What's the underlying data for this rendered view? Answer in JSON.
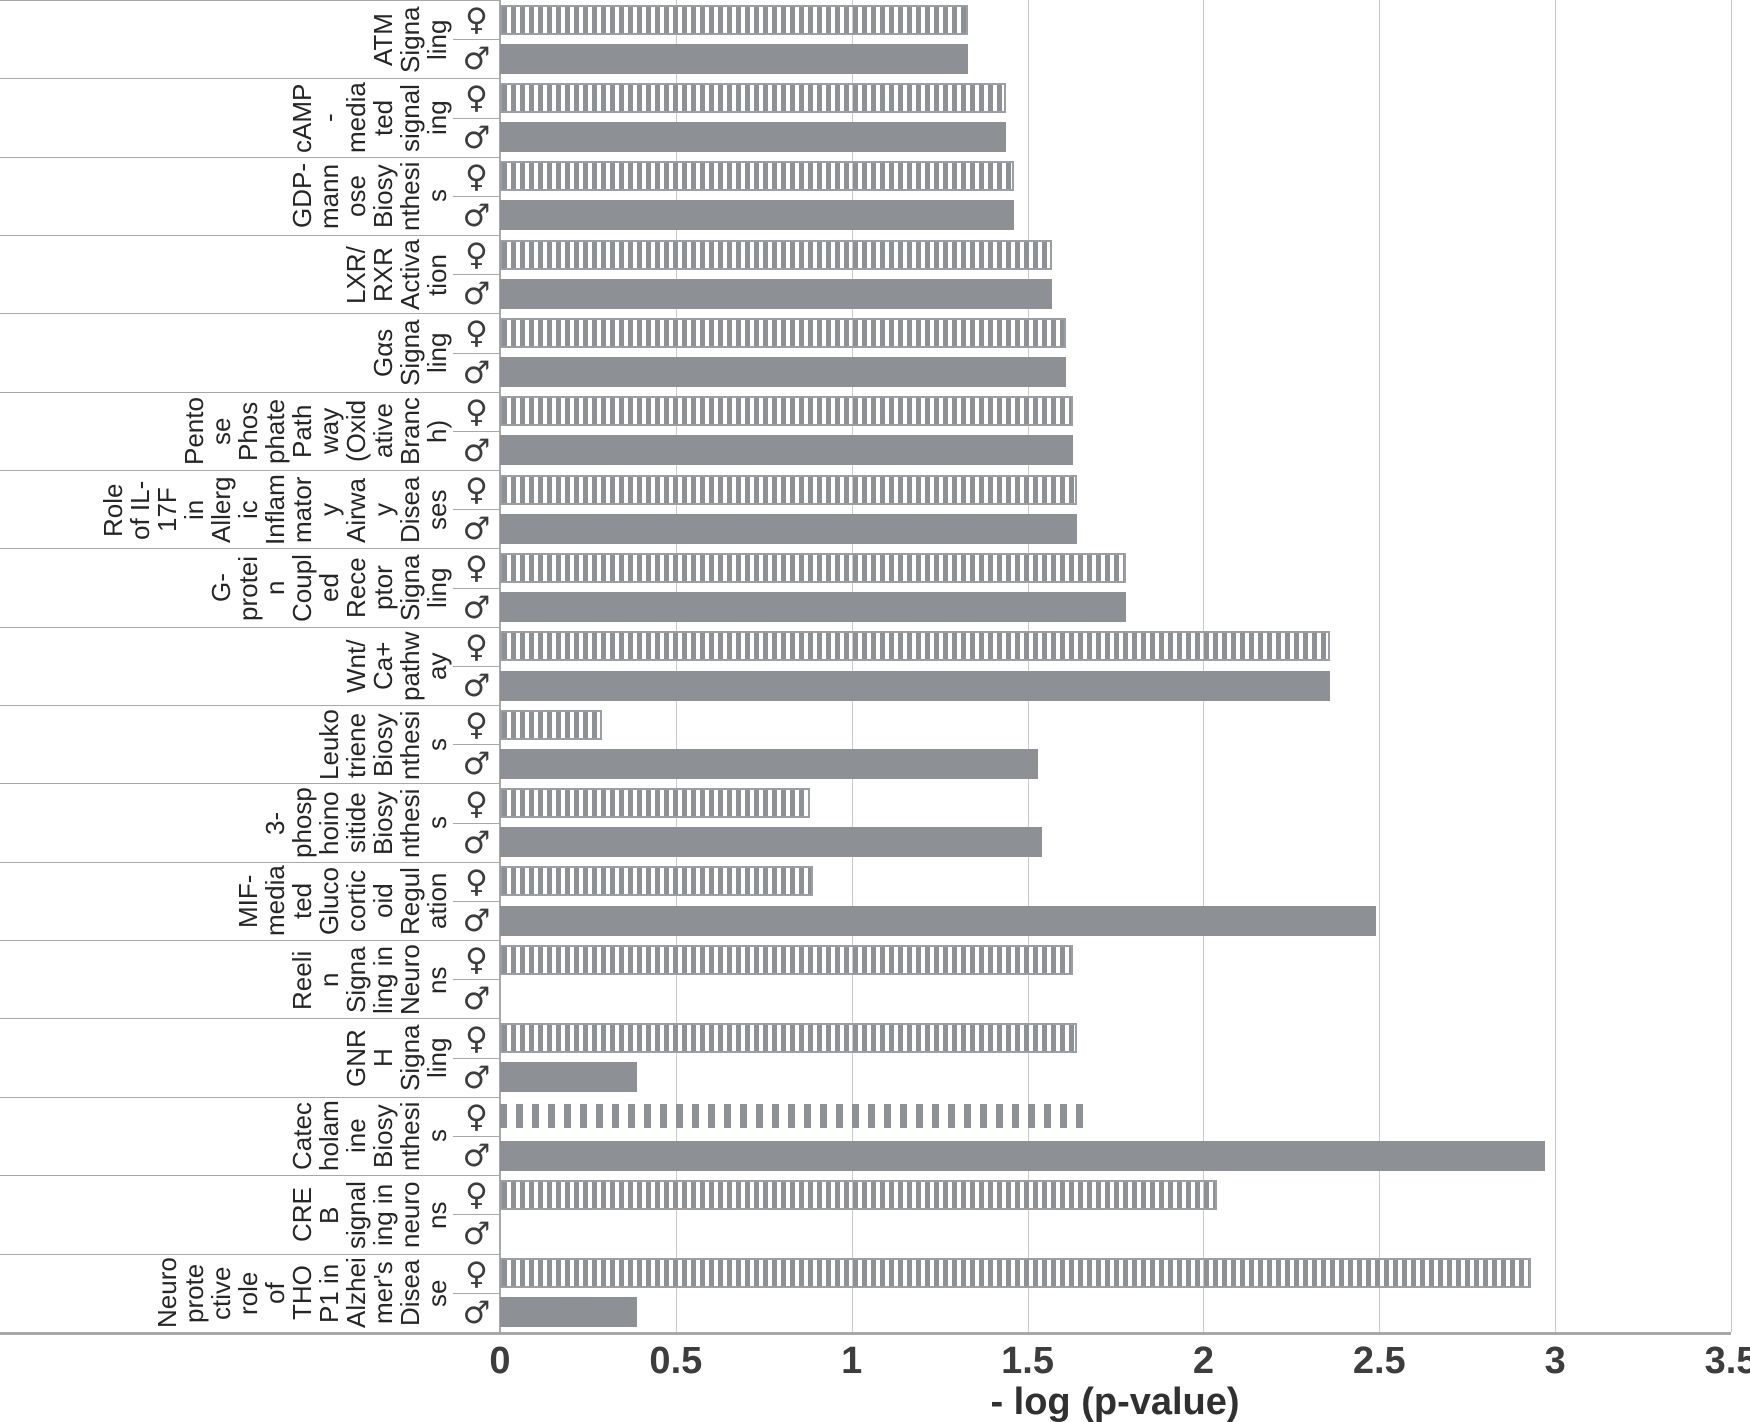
{
  "chart_data": {
    "type": "bar",
    "orientation": "horizontal",
    "title": "",
    "xlabel": "- log (p-value)",
    "ylabel": "",
    "xlim": [
      0,
      3.5
    ],
    "xticks": [
      "0",
      "0.5",
      "1",
      "1.5",
      "2",
      "2.5",
      "3",
      "3.5"
    ],
    "grid": true,
    "legend_position": "none",
    "symbols": {
      "female": "♀",
      "male": "♂"
    },
    "series_note": "Each category has two bars: female (hatched, top) and male (solid, bottom)",
    "categories": [
      {
        "name": "ATM Signaling",
        "label": "ATM\nSigna\nling",
        "female": 1.33,
        "male": 1.33
      },
      {
        "name": "cAMP-mediated signaling",
        "label": "cAMP\n-\nmedia\nted\nsignal\ning",
        "female": 1.44,
        "male": 1.44
      },
      {
        "name": "GDP-mannose Biosynthesis",
        "label": "GDP-\nmann\nose\nBiosy\nnthesi\ns",
        "female": 1.46,
        "male": 1.46
      },
      {
        "name": "LXR/RXR Activation",
        "label": "LXR/\nRXR\nActiva\ntion",
        "female": 1.57,
        "male": 1.57
      },
      {
        "name": "Gαs Signaling",
        "label": "Gαs\nSigna\nling",
        "female": 1.61,
        "male": 1.61
      },
      {
        "name": "Pentose Phosphate Pathway (Oxidative Branch)",
        "label": "Pento\nse\nPhos\nphate\nPath\nway\n(Oxid\native\nBranc\nh)",
        "female": 1.63,
        "male": 1.63
      },
      {
        "name": "Role of IL-17F in Allergic Inflammatory Airway Diseases",
        "label": "Role\nof IL-\n17F\nin\nAllerg\nic\nInflam\nmator\ny\nAirwa\ny\nDisea\nses",
        "female": 1.64,
        "male": 1.64
      },
      {
        "name": "G-protein Coupled Receptor Signaling",
        "label": "G-\nprotei\nn\nCoupl\ned\nRece\nptor\nSigna\nling",
        "female": 1.78,
        "male": 1.78
      },
      {
        "name": "Wnt/Ca+ pathway",
        "label": "Wnt/\nCa+\npathw\nay",
        "female": 2.36,
        "male": 2.36
      },
      {
        "name": "Leukotriene Biosynthesis",
        "label": "Leuko\ntriene\nBiosy\nnthesi\ns",
        "female": 0.29,
        "male": 1.53
      },
      {
        "name": "3-phosphoinositide Biosynthesis",
        "label": "3-\nphosp\nhoino\nsitide\nBiosy\nnthesi\ns",
        "female": 0.88,
        "male": 1.54
      },
      {
        "name": "MIF-mediated Glucocorticoid Regulation",
        "label": "MIF-\nmedia\nted\nGluco\ncortic\noid\nRegul\nation",
        "female": 0.89,
        "male": 2.49
      },
      {
        "name": "Reelin Signaling in Neurons",
        "label": "Reeli\nn\nSigna\nling in\nNeuro\nns",
        "female": 1.63,
        "male": 0
      },
      {
        "name": "GNRH Signaling",
        "label": "GNR\nH\nSigna\nling",
        "female": 1.64,
        "male": 0.39
      },
      {
        "name": "Catecholamine Biosynthesis",
        "label": "Catec\nholam\nine\nBiosy\nnthesi\ns",
        "female": 1.68,
        "male": 2.97,
        "female_style": "dashed"
      },
      {
        "name": "CREB signaling in neurons",
        "label": "CRE\nB\nsignal\ning in\nneuro\nns",
        "female": 2.04,
        "male": 0
      },
      {
        "name": "Neuroprotective role of THOP1 in Alzheimer's Disease",
        "label": "Neuro\nprote\nctive\nrole\nof\nTHO\nP1 in\nAlzhei\nmer's\nDisea\nse",
        "female": 2.93,
        "male": 0.39
      }
    ]
  },
  "colors": {
    "bar_gray": "#8d9094",
    "hatch_border": "#9b9ea2",
    "gridline": "#c9c9c9",
    "axis_line": "#a8a8a8",
    "text": "#262626"
  }
}
